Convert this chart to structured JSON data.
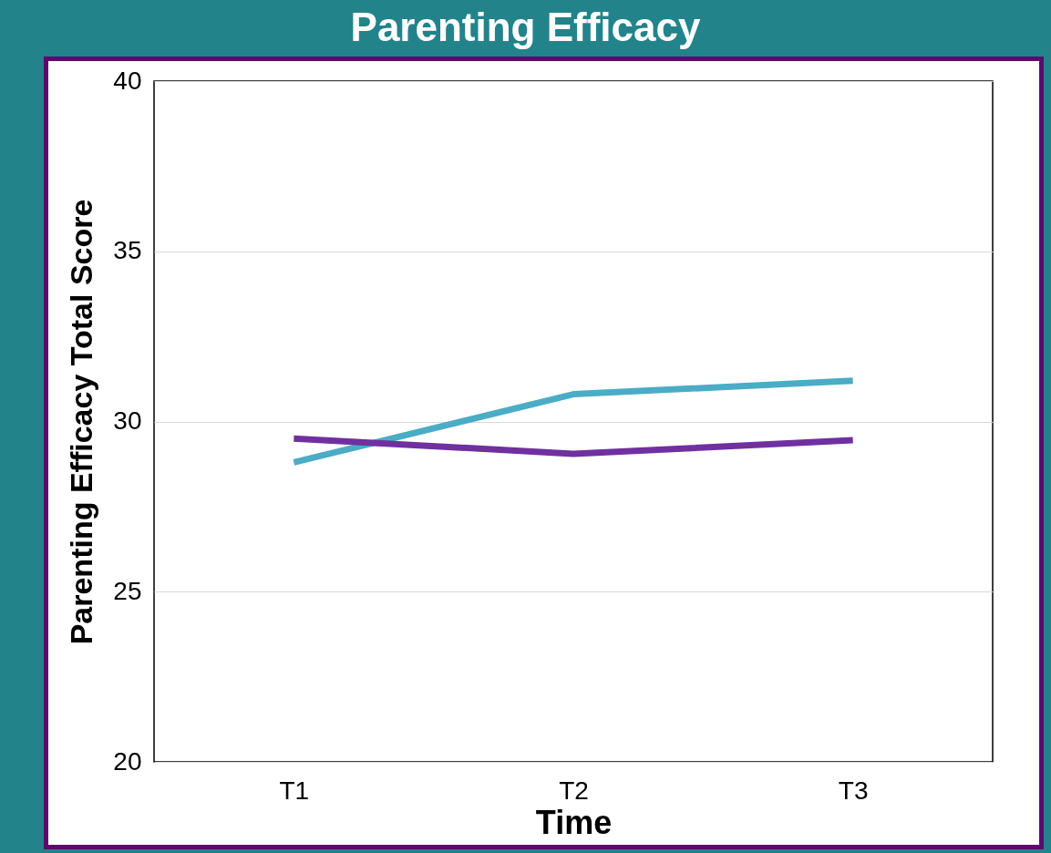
{
  "chart_data": {
    "type": "line",
    "title": "Parenting Efficacy",
    "xlabel": "Time",
    "ylabel": "Parenting Efficacy Total Score",
    "categories": [
      "T1",
      "T2",
      "T3"
    ],
    "series": [
      {
        "color": "#4bacc6",
        "values": [
          28.8,
          30.8,
          31.2
        ]
      },
      {
        "color": "#7030a0",
        "values": [
          29.5,
          29.05,
          29.45
        ]
      }
    ],
    "ylim": [
      20,
      40
    ],
    "yticks": [
      20,
      25,
      30,
      35,
      40
    ],
    "grid": "y",
    "legend": false
  }
}
